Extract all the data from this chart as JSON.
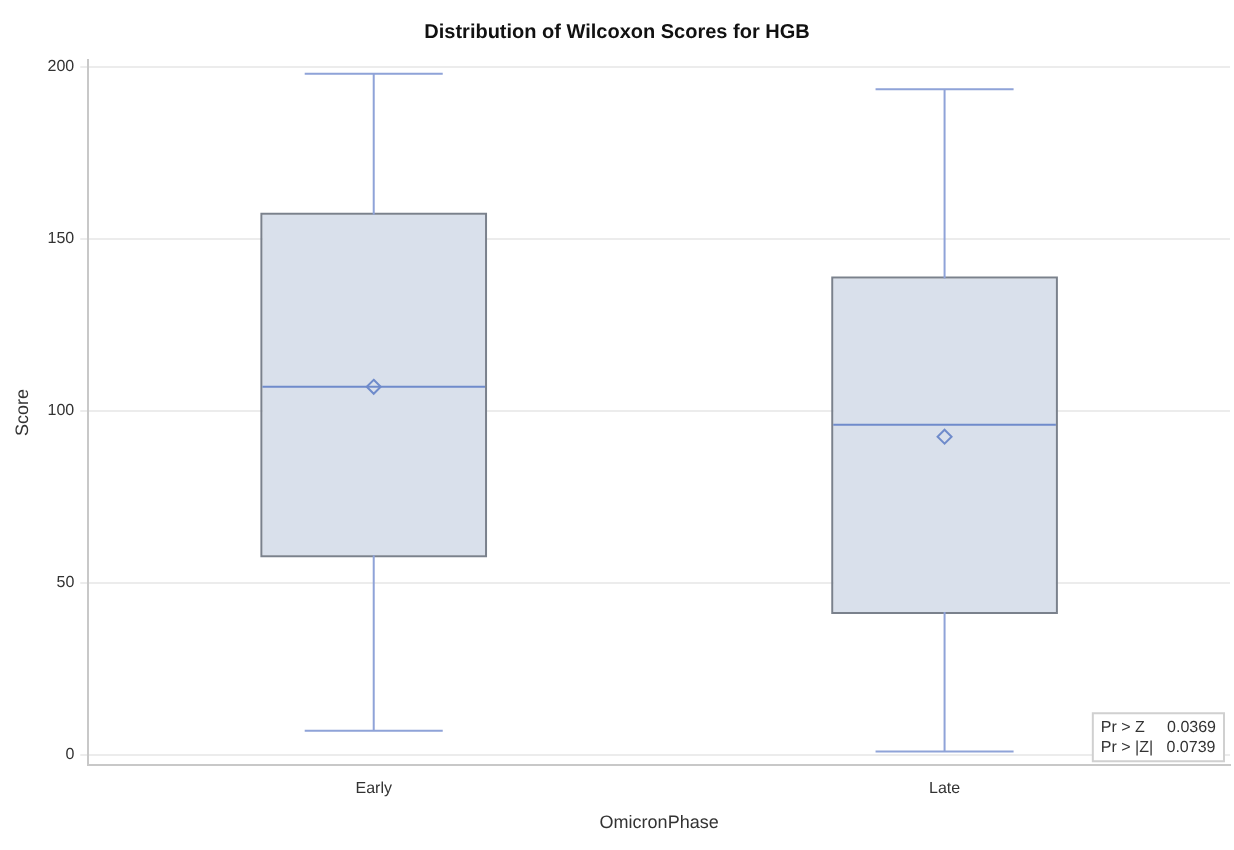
{
  "chart_data": {
    "type": "box",
    "title": "Distribution of Wilcoxon Scores for HGB",
    "xlabel": "OmicronPhase",
    "ylabel": "Score",
    "categories": [
      "Early",
      "Late"
    ],
    "boxes": [
      {
        "low": 7,
        "q1": 58,
        "median": 107,
        "q3": 157,
        "high": 198,
        "mean": 107
      },
      {
        "low": 1,
        "q1": 41.5,
        "median": 96,
        "q3": 138.5,
        "high": 193.5,
        "mean": 92.5
      }
    ],
    "color": "#d9e0eb",
    "ylim": [
      -3,
      202
    ],
    "yticks": [
      0,
      50,
      100,
      150,
      200
    ],
    "grid": "y",
    "annotations": [
      "Pr > Z     0.0369",
      "Pr > |Z|   0.0739"
    ]
  }
}
